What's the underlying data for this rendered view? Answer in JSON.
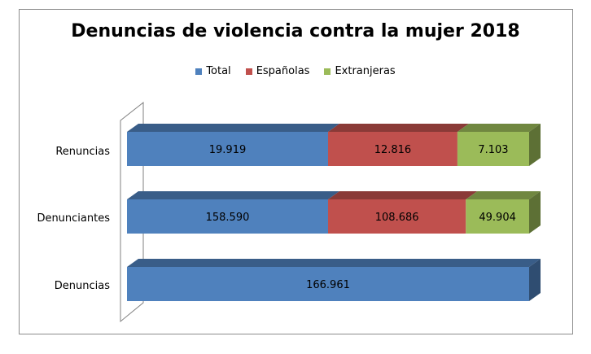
{
  "chart_data": {
    "type": "bar",
    "orientation": "horizontal",
    "stacked": true,
    "title": "Denuncias de violencia contra la mujer 2018",
    "legend_position": "top",
    "categories": [
      "Renuncias",
      "Denunciantes",
      "Denuncias"
    ],
    "series": [
      {
        "name": "Total",
        "color": "#4f81bd",
        "values": [
          19919,
          158590,
          166961
        ],
        "labels": [
          "19.919",
          "158.590",
          "166.961"
        ]
      },
      {
        "name": "Españolas",
        "color": "#c0504d",
        "values": [
          12816,
          108686,
          null
        ],
        "labels": [
          "12.816",
          "108.686",
          ""
        ]
      },
      {
        "name": "Extranjeras",
        "color": "#9bbb59",
        "values": [
          7103,
          49904,
          null
        ],
        "labels": [
          "7.103",
          "49.904",
          ""
        ]
      }
    ],
    "grid": false
  }
}
